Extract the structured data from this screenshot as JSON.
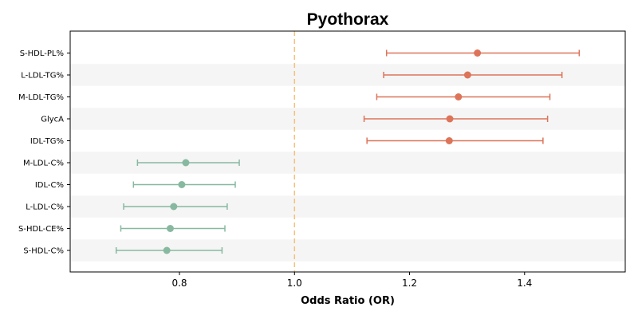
{
  "chart_data": {
    "type": "scatter",
    "title": "Pyothorax",
    "xlabel": "Odds Ratio (OR)",
    "ylabel": "",
    "xlim": [
      0.61,
      1.575
    ],
    "xticks": [
      0.8,
      1.0,
      1.2,
      1.4
    ],
    "xtick_labels": [
      "0.8",
      "1.0",
      "1.2",
      "1.4"
    ],
    "reference_line": {
      "x": 1.0,
      "color": "#f5c07a",
      "style": "dashed"
    },
    "grid": false,
    "row_shading": "alternating",
    "colors": {
      "risk": "#dd7459",
      "protective": "#87b9a0"
    },
    "rows": [
      {
        "label": "S-HDL-PL%",
        "or": 1.318,
        "lower": 1.16,
        "upper": 1.495,
        "group": "risk"
      },
      {
        "label": "L-LDL-TG%",
        "or": 1.301,
        "lower": 1.155,
        "upper": 1.465,
        "group": "risk"
      },
      {
        "label": "M-LDL-TG%",
        "or": 1.285,
        "lower": 1.143,
        "upper": 1.444,
        "group": "risk"
      },
      {
        "label": "GlycA",
        "or": 1.27,
        "lower": 1.121,
        "upper": 1.44,
        "group": "risk"
      },
      {
        "label": "IDL-TG%",
        "or": 1.269,
        "lower": 1.126,
        "upper": 1.432,
        "group": "risk"
      },
      {
        "label": "M-LDL-C%",
        "or": 0.811,
        "lower": 0.727,
        "upper": 0.904,
        "group": "protective"
      },
      {
        "label": "IDL-C%",
        "or": 0.804,
        "lower": 0.72,
        "upper": 0.897,
        "group": "protective"
      },
      {
        "label": "L-LDL-C%",
        "or": 0.79,
        "lower": 0.703,
        "upper": 0.883,
        "group": "protective"
      },
      {
        "label": "S-HDL-CE%",
        "or": 0.784,
        "lower": 0.698,
        "upper": 0.879,
        "group": "protective"
      },
      {
        "label": "S-HDL-C%",
        "or": 0.778,
        "lower": 0.69,
        "upper": 0.874,
        "group": "protective"
      }
    ]
  }
}
